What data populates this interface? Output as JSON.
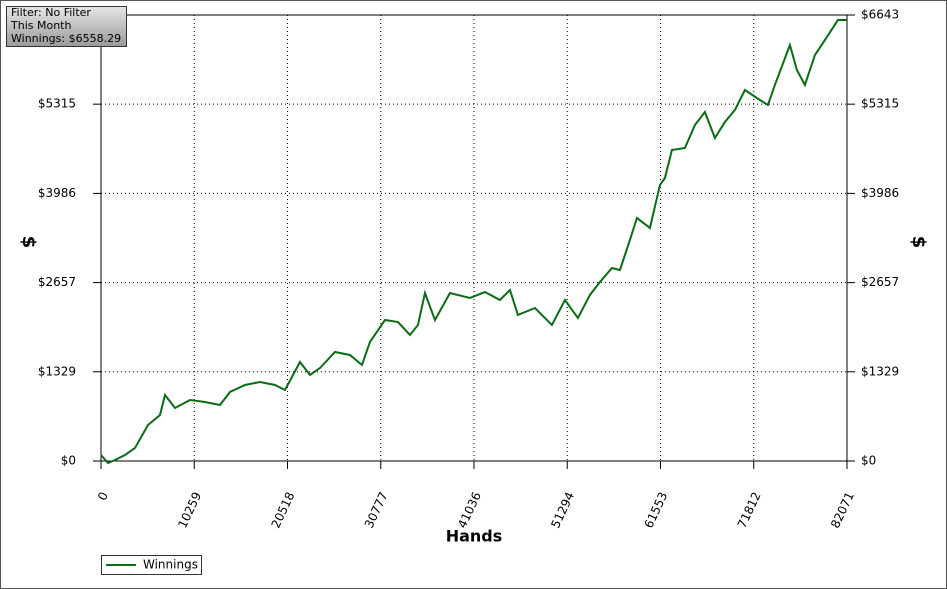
{
  "chart_data": {
    "type": "line",
    "info": [
      "Filter: No Filter",
      "This Month",
      "Winnings: $6558.29"
    ],
    "x_label": "Hands",
    "y_label": "$",
    "y2_label": "$",
    "x": [
      0,
      770,
      1540,
      2640,
      3740,
      5170,
      6490,
      7040,
      8140,
      9790,
      11440,
      13090,
      14190,
      15840,
      17490,
      19140,
      20240,
      21890,
      22990,
      24090,
      25740,
      27390,
      28710,
      29590,
      31240,
      32670,
      33990,
      34870,
      35640,
      36740,
      38390,
      40590,
      42240,
      43890,
      44990,
      45870,
      47740,
      49610,
      51040,
      52470,
      53790,
      54890,
      56210,
      57090,
      58190,
      58960,
      60390,
      61490,
      62040,
      62810,
      64240,
      65340,
      66440,
      67540,
      68640,
      69740,
      70840,
      72490,
      73370,
      74140,
      75790,
      76560,
      77440,
      78540,
      79640,
      81070,
      82071
    ],
    "series": [
      {
        "name": "Winnings",
        "color": "#0b6b16",
        "values": [
          89,
          -30,
          15,
          89,
          194,
          536,
          685,
          983,
          789,
          908,
          879,
          834,
          1028,
          1132,
          1177,
          1132,
          1058,
          1475,
          1281,
          1385,
          1624,
          1579,
          1430,
          1773,
          2100,
          2070,
          1877,
          2026,
          2502,
          2100,
          2502,
          2428,
          2517,
          2398,
          2547,
          2175,
          2279,
          2026,
          2398,
          2130,
          2473,
          2666,
          2875,
          2845,
          3292,
          3620,
          3471,
          4111,
          4215,
          4632,
          4662,
          5005,
          5198,
          4811,
          5049,
          5228,
          5526,
          5377,
          5303,
          5601,
          6196,
          5824,
          5601,
          6047,
          6270,
          6568,
          6568
        ]
      }
    ],
    "xlim": [
      0,
      82071
    ],
    "xticks": [
      0,
      10259,
      20518,
      30777,
      41036,
      51294,
      61553,
      71812,
      82071
    ],
    "ylim": [
      0,
      6643
    ],
    "yticks": [
      {
        "value": 0,
        "label": "$0"
      },
      {
        "value": 1329,
        "label": "$1329"
      },
      {
        "value": 2657,
        "label": "$2657"
      },
      {
        "value": 3986,
        "label": "$3986"
      },
      {
        "value": 5315,
        "label": "$5315"
      },
      {
        "value": 6643,
        "label": "$6643"
      }
    ],
    "grid": true,
    "legend": "bottom-left"
  }
}
